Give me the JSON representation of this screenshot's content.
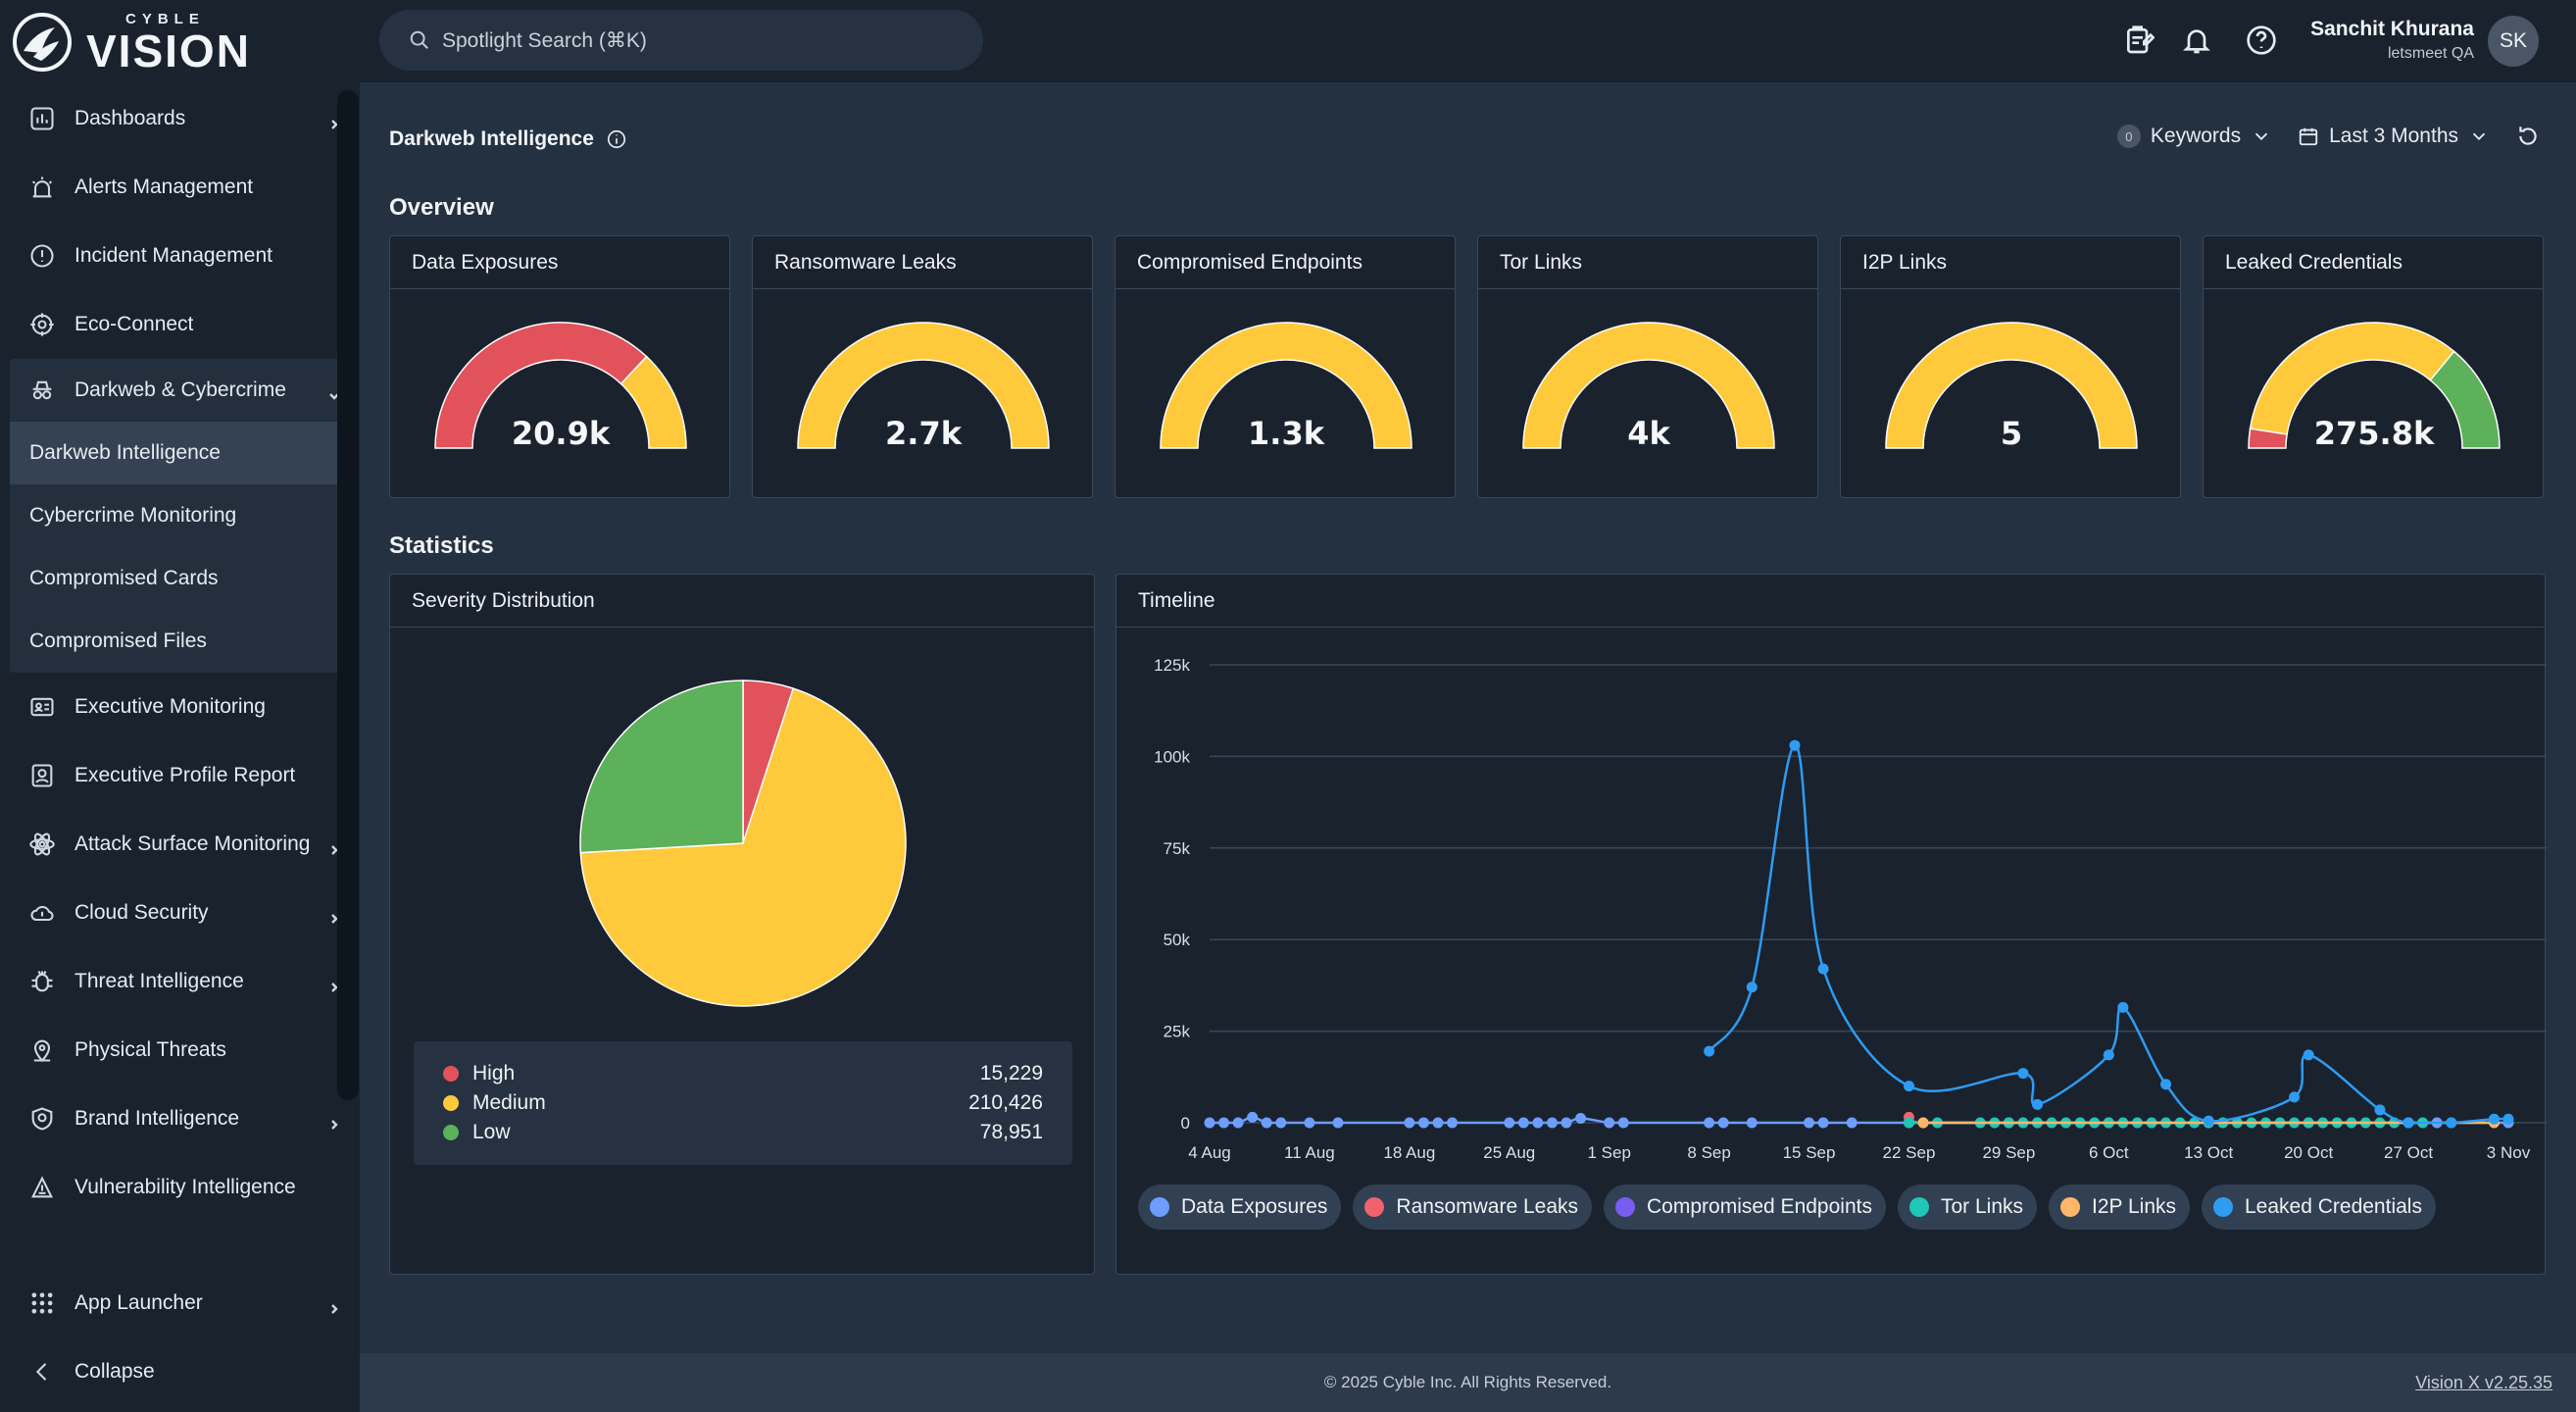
{
  "brand": {
    "small": "CYBLE",
    "big": "VISION"
  },
  "search": {
    "placeholder": "Spotlight Search (⌘K)"
  },
  "user": {
    "name": "Sanchit Khurana",
    "org": "letsmeet QA",
    "initials": "SK"
  },
  "sidebar": {
    "items": [
      {
        "label": "Dashboards",
        "icon": "chart-icon",
        "chevron": true
      },
      {
        "label": "Alerts Management",
        "icon": "alarm-icon"
      },
      {
        "label": "Incident Management",
        "icon": "alert-circle-icon"
      },
      {
        "label": "Eco-Connect",
        "icon": "network-icon"
      },
      {
        "label": "Darkweb & Cybercrime",
        "icon": "spy-icon",
        "expanded": true
      }
    ],
    "sub_items": [
      "Darkweb Intelligence",
      "Cybercrime Monitoring",
      "Compromised Cards",
      "Compromised Files"
    ],
    "items_after": [
      {
        "label": "Executive Monitoring",
        "icon": "id-card-icon"
      },
      {
        "label": "Executive Profile Report",
        "icon": "profile-report-icon"
      },
      {
        "label": "Attack Surface Monitoring",
        "icon": "atom-icon",
        "chevron": true
      },
      {
        "label": "Cloud Security",
        "icon": "cloud-shield-icon",
        "chevron": true
      },
      {
        "label": "Threat Intelligence",
        "icon": "bug-icon",
        "chevron": true
      },
      {
        "label": "Physical Threats",
        "icon": "map-pin-icon"
      },
      {
        "label": "Brand Intelligence",
        "icon": "brand-shield-icon",
        "chevron": true
      },
      {
        "label": "Vulnerability Intelligence",
        "icon": "vuln-icon"
      }
    ],
    "app_launcher": "App Launcher",
    "collapse": "Collapse"
  },
  "page": {
    "title": "Darkweb Intelligence",
    "keywords_count": "0",
    "keywords_label": "Keywords",
    "date_range": "Last 3 Months",
    "overview_title": "Overview",
    "statistics_title": "Statistics"
  },
  "colors": {
    "high": "#e2525a",
    "medium": "#ffc93c",
    "low": "#5cb15a",
    "track": "#ffc93c"
  },
  "gauges": [
    {
      "title": "Data Exposures",
      "value": "20.9k",
      "segments": [
        {
          "color": "#e2525a",
          "fraction": 0.74
        },
        {
          "color": "#ffc93c",
          "fraction": 0.26
        }
      ]
    },
    {
      "title": "Ransomware Leaks",
      "value": "2.7k",
      "segments": [
        {
          "color": "#ffc93c",
          "fraction": 1
        }
      ]
    },
    {
      "title": "Compromised Endpoints",
      "value": "1.3k",
      "segments": [
        {
          "color": "#ffc93c",
          "fraction": 1
        }
      ]
    },
    {
      "title": "Tor Links",
      "value": "4k",
      "segments": [
        {
          "color": "#ffc93c",
          "fraction": 1
        }
      ]
    },
    {
      "title": "I2P Links",
      "value": "5",
      "segments": [
        {
          "color": "#ffc93c",
          "fraction": 1
        }
      ]
    },
    {
      "title": "Leaked Credentials",
      "value": "275.8k",
      "segments": [
        {
          "color": "#e2525a",
          "fraction": 0.05
        },
        {
          "color": "#ffc93c",
          "fraction": 0.67
        },
        {
          "color": "#5cb15a",
          "fraction": 0.28
        }
      ]
    }
  ],
  "severity": {
    "title": "Severity Distribution",
    "rows": [
      {
        "label": "High",
        "value": "15,229",
        "color": "#e2525a"
      },
      {
        "label": "Medium",
        "value": "210,426",
        "color": "#ffc93c"
      },
      {
        "label": "Low",
        "value": "78,951",
        "color": "#5cb15a"
      }
    ]
  },
  "timeline": {
    "title": "Timeline"
  },
  "footer": {
    "copyright": "© 2025 Cyble Inc. All Rights Reserved.",
    "version": "Vision X v2.25.35"
  },
  "chart_data": [
    {
      "type": "pie",
      "title": "Severity Distribution",
      "categories": [
        "High",
        "Medium",
        "Low"
      ],
      "values": [
        15229,
        210426,
        78951
      ],
      "colors": [
        "#e2525a",
        "#ffc93c",
        "#5cb15a"
      ]
    },
    {
      "type": "line",
      "title": "Timeline",
      "xlabel": "",
      "ylabel": "",
      "ylim": [
        0,
        125000
      ],
      "yticks": [
        "0",
        "25k",
        "50k",
        "75k",
        "100k",
        "125k"
      ],
      "xticks": [
        "4 Aug",
        "11 Aug",
        "18 Aug",
        "25 Aug",
        "1 Sep",
        "8 Sep",
        "15 Sep",
        "22 Sep",
        "29 Sep",
        "6 Oct",
        "13 Oct",
        "20 Oct",
        "27 Oct",
        "3 Nov"
      ],
      "grid": true,
      "legend": "bottom",
      "series": [
        {
          "name": "Data Exposures",
          "color": "#6d9eff",
          "marker": true,
          "x": [
            "4 Aug",
            "5 Aug",
            "6 Aug",
            "7 Aug",
            "8 Aug",
            "9 Aug",
            "11 Aug",
            "13 Aug",
            "18 Aug",
            "19 Aug",
            "20 Aug",
            "21 Aug",
            "25 Aug",
            "26 Aug",
            "27 Aug",
            "28 Aug",
            "29 Aug",
            "30 Aug",
            "1 Sep",
            "2 Sep",
            "8 Sep",
            "9 Sep",
            "11 Sep",
            "15 Sep",
            "16 Sep",
            "18 Sep",
            "22 Sep",
            "29 Sep",
            "6 Oct",
            "13 Oct",
            "20 Oct",
            "27 Oct",
            "29 Oct",
            "3 Nov"
          ],
          "y": [
            0,
            0,
            0,
            1500,
            0,
            0,
            0,
            0,
            0,
            0,
            0,
            0,
            0,
            0,
            0,
            0,
            0,
            1200,
            0,
            0,
            0,
            0,
            0,
            0,
            0,
            0,
            0,
            0,
            0,
            0,
            0,
            0,
            0,
            0
          ]
        },
        {
          "name": "Ransomware Leaks",
          "color": "#f0626c",
          "marker": true,
          "x": [
            "22 Sep",
            "23 Sep",
            "29 Sep",
            "6 Oct",
            "13 Oct",
            "20 Oct",
            "27 Oct"
          ],
          "y": [
            1500,
            0,
            0,
            0,
            0,
            0,
            0
          ]
        },
        {
          "name": "Compromised Endpoints",
          "color": "#7a5cf0",
          "marker": true,
          "x": [
            "22 Sep",
            "1 Oct",
            "4 Oct"
          ],
          "y": [
            0,
            0,
            0
          ]
        },
        {
          "name": "Tor Links",
          "color": "#1fc7b8",
          "marker": true,
          "x": [
            "22 Sep",
            "24 Sep",
            "27 Sep",
            "28 Sep",
            "29 Sep",
            "30 Sep",
            "1 Oct",
            "2 Oct",
            "3 Oct",
            "4 Oct",
            "5 Oct",
            "6 Oct",
            "7 Oct",
            "8 Oct",
            "9 Oct",
            "10 Oct",
            "11 Oct",
            "12 Oct",
            "13 Oct",
            "14 Oct",
            "15 Oct",
            "16 Oct",
            "17 Oct",
            "18 Oct",
            "19 Oct",
            "20 Oct",
            "21 Oct",
            "22 Oct",
            "23 Oct",
            "24 Oct",
            "25 Oct",
            "26 Oct",
            "27 Oct",
            "28 Oct",
            "30 Oct"
          ],
          "y": [
            0,
            0,
            0,
            0,
            0,
            0,
            0,
            0,
            0,
            0,
            0,
            0,
            0,
            0,
            0,
            0,
            0,
            0,
            0,
            0,
            0,
            0,
            0,
            0,
            0,
            0,
            0,
            0,
            0,
            0,
            0,
            0,
            0,
            0,
            0
          ]
        },
        {
          "name": "I2P Links",
          "color": "#ffb66b",
          "marker": true,
          "x": [
            "23 Sep",
            "2 Nov"
          ],
          "y": [
            0,
            0
          ]
        },
        {
          "name": "Leaked Credentials",
          "color": "#2e9cf2",
          "marker": true,
          "x": [
            "8 Sep",
            "11 Sep",
            "14 Sep",
            "16 Sep",
            "22 Sep",
            "30 Sep",
            "1 Oct",
            "6 Oct",
            "7 Oct",
            "10 Oct",
            "13 Oct",
            "19 Oct",
            "20 Oct",
            "25 Oct",
            "27 Oct",
            "30 Oct",
            "2 Nov",
            "3 Nov"
          ],
          "y": [
            19500,
            37000,
            103000,
            42000,
            10000,
            13500,
            5000,
            18500,
            31500,
            10500,
            500,
            7000,
            18500,
            3500,
            0,
            0,
            1000,
            1000
          ]
        }
      ]
    }
  ]
}
